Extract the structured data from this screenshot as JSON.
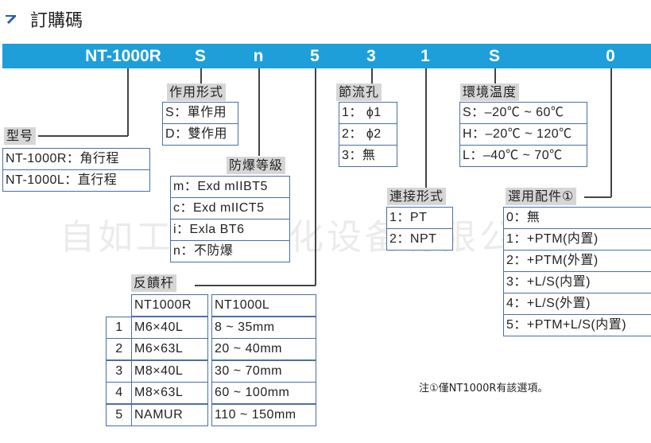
{
  "title": "訂購碼",
  "title_icon": "arrow-up-right-icon",
  "accent_color": "#1e9fd9",
  "code_segments": [
    "NT-1000R",
    "S",
    "n",
    "5",
    "3",
    "1",
    "S",
    "0"
  ],
  "groups": {
    "model": {
      "label": "型号",
      "options": [
        "NT-1000R：角行程",
        "NT-1000L：直行程"
      ]
    },
    "action": {
      "label": "作用形式",
      "options": [
        "S：單作用",
        "D：雙作用"
      ]
    },
    "explosion": {
      "label": "防爆等級",
      "options": [
        "m：Exd mIIBT5",
        "c：Exd mIICT5",
        "i：Exla BT6",
        "n：不防爆"
      ]
    },
    "orifice": {
      "label": "節流孔",
      "options": [
        "1： ϕ1",
        "2： ϕ2",
        "3：無"
      ]
    },
    "temperature": {
      "label": "環境温度",
      "options": [
        "S：–20℃ ~ 60℃",
        "H：–20℃ ~ 120℃",
        "L：–40℃ ~ 70℃"
      ]
    },
    "connection": {
      "label": "連接形式",
      "options": [
        "1：PT",
        "2：NPT"
      ]
    },
    "accessory": {
      "label": "選用配件①",
      "options": [
        "0：無",
        "1：+PTM(内置)",
        "2：+PTM(外置)",
        "3：+L/S(内置)",
        "4：+L/S(外置)",
        "5：+PTM+L/S(内置)"
      ]
    }
  },
  "feedback": {
    "label": "反饋杆",
    "headers": [
      "NT1000R",
      "NT1000L"
    ],
    "rows": [
      {
        "no": "1",
        "r": "M6×40L",
        "l": "8 ~ 35mm"
      },
      {
        "no": "2",
        "r": "M6×63L",
        "l": "20 ~ 40mm"
      },
      {
        "no": "3",
        "r": "M8×40L",
        "l": "30 ~ 70mm"
      },
      {
        "no": "4",
        "r": "M8×63L",
        "l": "60 ~ 100mm"
      },
      {
        "no": "5",
        "r": "NAMUR",
        "l": "110 ~ 150mm"
      }
    ]
  },
  "note": "注①僅NT1000R有該選項。",
  "watermark": "自如工控自动化设备有限公司"
}
